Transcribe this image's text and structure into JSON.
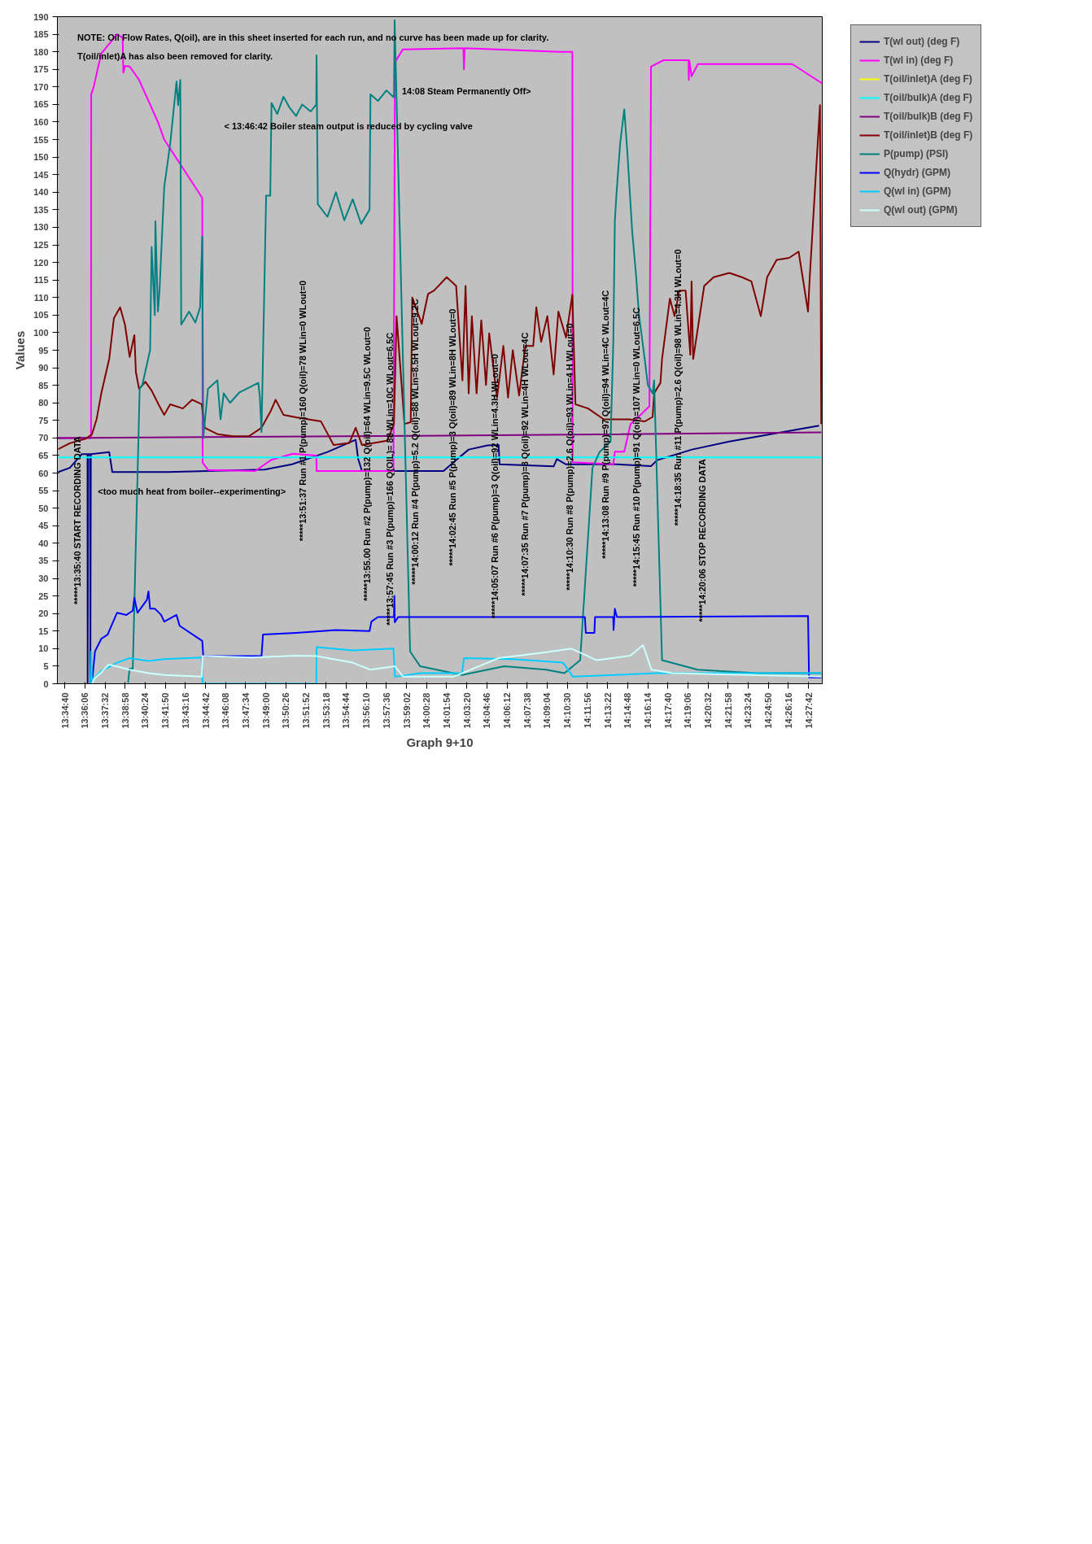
{
  "chart_data": {
    "type": "line",
    "xlabel": "Graph 9+10",
    "ylabel": "Values",
    "legend": "right",
    "xlim": [
      13.569,
      14.478
    ],
    "ylim": [
      0,
      190
    ],
    "yticks": [
      0,
      5,
      10,
      15,
      20,
      25,
      30,
      35,
      40,
      45,
      50,
      55,
      60,
      65,
      70,
      75,
      80,
      85,
      90,
      95,
      100,
      105,
      110,
      115,
      120,
      125,
      130,
      135,
      140,
      145,
      150,
      155,
      160,
      165,
      170,
      175,
      180,
      185,
      190
    ],
    "xticks": [
      {
        "value": 13.5778,
        "label": "13:34:40"
      },
      {
        "value": 13.6017,
        "label": "13:36:06"
      },
      {
        "value": 13.6256,
        "label": "13:37:32"
      },
      {
        "value": 13.6494,
        "label": "13:38:58"
      },
      {
        "value": 13.6733,
        "label": "13:40:24"
      },
      {
        "value": 13.6972,
        "label": "13:41:50"
      },
      {
        "value": 13.7211,
        "label": "13:43:16"
      },
      {
        "value": 13.745,
        "label": "13:44:42"
      },
      {
        "value": 13.7689,
        "label": "13:46:08"
      },
      {
        "value": 13.7928,
        "label": "13:47:34"
      },
      {
        "value": 13.8167,
        "label": "13:49:00"
      },
      {
        "value": 13.8406,
        "label": "13:50:26"
      },
      {
        "value": 13.8644,
        "label": "13:51:52"
      },
      {
        "value": 13.8883,
        "label": "13:53:18"
      },
      {
        "value": 13.9122,
        "label": "13:54:44"
      },
      {
        "value": 13.9361,
        "label": "13:56:10"
      },
      {
        "value": 13.96,
        "label": "13:57:36"
      },
      {
        "value": 13.9839,
        "label": "13:59:02"
      },
      {
        "value": 14.0078,
        "label": "14:00:28"
      },
      {
        "value": 14.0317,
        "label": "14:01:54"
      },
      {
        "value": 14.0556,
        "label": "14:03:20"
      },
      {
        "value": 14.0794,
        "label": "14:04:46"
      },
      {
        "value": 14.1033,
        "label": "14:06:12"
      },
      {
        "value": 14.1272,
        "label": "14:07:38"
      },
      {
        "value": 14.1511,
        "label": "14:09:04"
      },
      {
        "value": 14.175,
        "label": "14:10:30"
      },
      {
        "value": 14.1989,
        "label": "14:11:56"
      },
      {
        "value": 14.2228,
        "label": "14:13:22"
      },
      {
        "value": 14.2467,
        "label": "14:14:48"
      },
      {
        "value": 14.2706,
        "label": "14:16:14"
      },
      {
        "value": 14.2944,
        "label": "14:17:40"
      },
      {
        "value": 14.3183,
        "label": "14:19:06"
      },
      {
        "value": 14.3422,
        "label": "14:20:32"
      },
      {
        "value": 14.3661,
        "label": "14:21:58"
      },
      {
        "value": 14.39,
        "label": "14:23:24"
      },
      {
        "value": 14.4139,
        "label": "14:24:50"
      },
      {
        "value": 14.4378,
        "label": "14:26:16"
      },
      {
        "value": 14.4617,
        "label": "14:27:42"
      }
    ],
    "annotations": [
      "NOTE: Oil Flow Rates, Q(oil), are in this sheet inserted for each run, and no curve has been made up for clarity.",
      "T(oil/inlet)A has also been removed for clarity.",
      "< 13:46:42 Boiler steam output is reduced by cycling valve",
      "14:08 Steam Permanently Off>",
      "<too much heat from boiler--experimenting>",
      "*****13:35:40 START RECORDING DATA",
      "*****13:51:37 Run #1 P(pump)=160 Q(oil)=78 WLin=0 WLout=0",
      "*****13:55.00 Run #2 P(pump)=132 Q(oil)=64 WLin=9.5C WLout=0",
      "*****13:57:45 Run #3 P(pump)=166 Q(OIL)= 88 WLin=10C WLout=6.5C",
      "*****14:00:12 Run #4 P(pump)=5.2 Q(oil)=88 WLin=8.5H WLout=9.2C",
      "*****14:02:45 Run #5 P(pump)=3 Q(oil)=89 WLin=8H WLout=0",
      "*****14:05:07 Run #6 P(pump)=3 Q(oil)=92 WLin=4.3H WLout=0",
      "*****14:07:35 Run #7 P(pump)=3 Q(oil)=92 WLin=4H WLout=4C",
      "*****14:10:30 Run #8 P(pump)=2.6 Q(oil)=93 WLin=4 H WLout=0",
      "*****14:13:08 Run #9 P(pump)=97 Q(oil)=94 WLin=4C WLout=4C",
      "*****14:15:45 Run #10 P(pump)=91 Q(oil)=107 WLin=0 WLout=6.5C",
      "*****14:18:35 Run #11 P(pump)=2.6 Q(oil)=98 WLin=4.3H WLout=0",
      "*****14:20:06 STOP RECORDING DATA"
    ],
    "series": [
      {
        "name": "T(wl out) (deg F)",
        "color": "#000080",
        "x": [
          13.57,
          13.5838,
          13.598,
          13.6048,
          13.605,
          13.6056,
          13.608,
          13.6082,
          13.6088,
          13.6306,
          13.6343,
          13.7,
          13.8153,
          13.8479,
          13.89,
          13.9235,
          13.9265,
          13.931,
          14.0095,
          14.0279,
          14.0429,
          14.0578,
          14.0803,
          14.0934,
          14.0945,
          14.1588,
          14.1626,
          14.1735,
          14.2333,
          14.2745,
          14.282,
          14.3231,
          14.3676,
          14.4742
        ],
        "values": [
          60.3,
          61.5,
          65.4,
          65.4,
          0,
          65.4,
          65.4,
          0,
          65.4,
          66,
          60.3,
          60.3,
          61,
          62.5,
          66,
          69.5,
          64,
          60.6,
          60.6,
          60.6,
          63.7,
          66.7,
          67.9,
          68,
          62.5,
          61.9,
          64,
          62.5,
          62.5,
          62,
          63.7,
          66.7,
          69,
          73.5
        ]
      },
      {
        "name": "T(wl in) (deg F)",
        "color": "#ff00ff",
        "x": [
          13.57,
          13.609,
          13.6092,
          13.6118,
          13.6212,
          13.6399,
          13.6466,
          13.6474,
          13.6493,
          13.6549,
          13.6661,
          13.6773,
          13.6885,
          13.696,
          13.7412,
          13.7416,
          13.748,
          13.8041,
          13.8228,
          13.849,
          13.8767,
          13.8771,
          13.9684,
          13.9702,
          13.9796,
          14.0515,
          14.0522,
          14.053,
          14.1663,
          14.181,
          14.1814,
          14.2296,
          14.2315,
          14.2427,
          14.2502,
          14.2595,
          14.2726,
          14.2745,
          14.2894,
          14.319,
          14.3194,
          14.32,
          14.3227,
          14.3302,
          14.4424,
          14.4779
        ],
        "values": [
          70,
          70,
          167.9,
          169.7,
          179.5,
          185,
          184,
          174,
          176,
          175.8,
          172,
          166,
          160,
          155,
          138.4,
          63,
          60.9,
          60.6,
          63.7,
          65.5,
          65,
          60.6,
          60.6,
          177,
          180.7,
          181,
          175,
          181,
          180,
          180,
          63.1,
          62.5,
          66.1,
          66.1,
          74,
          76,
          79,
          175.8,
          177.6,
          177.6,
          172,
          177.6,
          173,
          176.5,
          176.5,
          171
        ]
      },
      {
        "name": "T(oil/inlet)A (deg F)",
        "color": "#ffff00"
      },
      {
        "name": "T(oil/bulk)A (deg F)",
        "color": "#00ffff",
        "x": [
          13.57,
          14.0,
          14.4768
        ],
        "values": [
          64.5,
          64.5,
          64.5
        ]
      },
      {
        "name": "T(oil/bulk)B (deg F)",
        "color": "#800080",
        "x": [
          13.57,
          14.0,
          14.4768
        ],
        "values": [
          70,
          70.6,
          71.6
        ]
      },
      {
        "name": "T(oil/inlet)B (deg F)",
        "color": "#800000",
        "x": [
          13.57,
          13.5838,
          13.6025,
          13.61,
          13.6156,
          13.6212,
          13.6306,
          13.6362,
          13.6436,
          13.6493,
          13.6549,
          13.6605,
          13.6623,
          13.6661,
          13.6736,
          13.681,
          13.6904,
          13.696,
          13.7031,
          13.7181,
          13.7293,
          13.7405,
          13.7442,
          13.7592,
          13.7779,
          13.7966,
          13.8116,
          13.8228,
          13.8284,
          13.8377,
          13.8527,
          13.8823,
          13.8973,
          13.916,
          13.9235,
          13.931,
          13.9609,
          13.969,
          13.9721,
          13.9815,
          13.9889,
          13.9908,
          14.002,
          14.0095,
          14.0167,
          14.0317,
          14.0429,
          14.0504,
          14.0541,
          14.0578,
          14.0616,
          14.0672,
          14.0728,
          14.0784,
          14.0822,
          14.0915,
          14.099,
          14.1046,
          14.1102,
          14.1177,
          14.1252,
          14.1345,
          14.1382,
          14.1439,
          14.1513,
          14.1588,
          14.1644,
          14.1735,
          14.181,
          14.1847,
          14.1997,
          14.2184,
          14.2483,
          14.267,
          14.2764,
          14.2782,
          14.2857,
          14.2876,
          14.2969,
          14.3025,
          14.3081,
          14.3156,
          14.3212,
          14.3227,
          14.3246,
          14.3377,
          14.3489,
          14.3676,
          14.3826,
          14.3938,
          14.405,
          14.4125,
          14.4237,
          14.4387,
          14.4499,
          14.4611,
          14.463,
          14.4753,
          14.4768
        ],
        "values": [
          66.8,
          68.5,
          69.8,
          71,
          75.3,
          82.7,
          92.5,
          104.1,
          107.2,
          102.3,
          93.1,
          99.3,
          88.8,
          84,
          86,
          83.5,
          79,
          76.6,
          79.6,
          78.4,
          80.9,
          79.6,
          72.9,
          71.1,
          70.5,
          70.5,
          72.9,
          77.8,
          80.9,
          76.6,
          75.9,
          74.7,
          68,
          68.6,
          72.9,
          68,
          69.2,
          74,
          104.7,
          74,
          74.5,
          110,
          102.5,
          111,
          112,
          115.8,
          113.3,
          86.4,
          113.3,
          82.7,
          104.7,
          82.7,
          103.5,
          85.1,
          99.8,
          81.5,
          96.2,
          81.5,
          95,
          82.1,
          96.2,
          96.2,
          107.2,
          97.4,
          104.7,
          88.1,
          106,
          98.6,
          110.8,
          79.6,
          78.4,
          75.3,
          75.3,
          74.7,
          76,
          82.7,
          85.7,
          92.5,
          109.7,
          104.7,
          112,
          112,
          93.7,
          114.6,
          92.5,
          113.3,
          115.8,
          117,
          115.8,
          114.6,
          104.7,
          115.8,
          120.7,
          121.3,
          123.1,
          106,
          115.2,
          164.8,
          74
        ]
      },
      {
        "name": "P(pump) (PSI)",
        "color": "#008080",
        "x": [
          13.653,
          13.6549,
          13.6586,
          13.6668,
          13.6698,
          13.6792,
          13.681,
          13.6848,
          13.6855,
          13.6885,
          13.6904,
          13.696,
          13.7031,
          13.7106,
          13.7125,
          13.7151,
          13.7162,
          13.7255,
          13.733,
          13.7386,
          13.7412,
          13.7424,
          13.748,
          13.7592,
          13.7629,
          13.7667,
          13.7742,
          13.7854,
          13.8078,
          13.8097,
          13.8116,
          13.8171,
          13.822,
          13.8235,
          13.8303,
          13.8377,
          13.8452,
          13.8527,
          13.86,
          13.87,
          13.8767,
          13.877,
          13.8785,
          13.89,
          13.9,
          13.91,
          13.92,
          13.93,
          13.94,
          13.9411,
          13.95,
          13.96,
          13.969,
          13.9698,
          13.9882,
          14.0,
          14.05,
          14.1,
          14.15,
          14.1716,
          14.1903,
          14.2049,
          14.2133,
          14.2264,
          14.2297,
          14.2315,
          14.2333,
          14.2378,
          14.2427,
          14.2464,
          14.252,
          14.2565,
          14.2603,
          14.267,
          14.2707,
          14.2764,
          14.2782,
          14.2876,
          14.33,
          14.4,
          14.4768
        ],
        "values": [
          0.3,
          4.3,
          4.3,
          84,
          85,
          95,
          124.4,
          105,
          131.7,
          106,
          112,
          141.5,
          153.8,
          171.5,
          164.8,
          172,
          102.3,
          106,
          102.9,
          107.2,
          127.4,
          70,
          84,
          86.4,
          75.3,
          82.7,
          80,
          83,
          85.7,
          81.5,
          71.7,
          139,
          139,
          165.4,
          162.3,
          167.2,
          164,
          161.7,
          165,
          163,
          165,
          179,
          136.6,
          133,
          140,
          132,
          138,
          131,
          135,
          167.9,
          166,
          169,
          167,
          189,
          9.2,
          5,
          2.5,
          5,
          4,
          3,
          6.7,
          61.5,
          66,
          69,
          97.4,
          131.7,
          139,
          153.8,
          163.6,
          151.3,
          129.3,
          117,
          104.8,
          92.5,
          85.1,
          82.7,
          86.4,
          6.7,
          4,
          3,
          3
        ]
      },
      {
        "name": "Q(hydr) (GPM)",
        "color": "#0000ff",
        "x": [
          13.61,
          13.6137,
          13.6212,
          13.6287,
          13.6399,
          13.6511,
          13.6586,
          13.6605,
          13.6642,
          13.6754,
          13.6773,
          13.6792,
          13.6848,
          13.6923,
          13.696,
          13.7106,
          13.7143,
          13.7412,
          13.7424,
          13.8116,
          13.8134,
          13.8527,
          13.9,
          13.94,
          13.9422,
          13.95,
          13.969,
          13.9695,
          13.97,
          13.974,
          14.1959,
          14.197,
          14.2072,
          14.208,
          14.2296,
          14.23,
          14.2315,
          14.234,
          14.4611,
          14.4623,
          14.4768
        ],
        "values": [
          0,
          9.2,
          12.8,
          14,
          20.2,
          19.6,
          20.8,
          24.5,
          20.2,
          23.9,
          26.3,
          21.4,
          21.4,
          19.6,
          17.7,
          19.6,
          16.5,
          12.2,
          7.9,
          7.9,
          14,
          14.5,
          15.3,
          15,
          17.7,
          19,
          19,
          25,
          17.5,
          19,
          19,
          14.5,
          14.5,
          19,
          19,
          15.3,
          21.4,
          19,
          19.3,
          1.8,
          1.8
        ]
      },
      {
        "name": "Q(wl in) (GPM)",
        "color": "#00ccff",
        "x": [
          13.6085,
          13.6092,
          13.61,
          13.6212,
          13.6399,
          13.6549,
          13.6773,
          13.696,
          13.7405,
          13.7416,
          13.852,
          13.8767,
          13.8771,
          13.92,
          13.9684,
          13.9702,
          14.0,
          14.05,
          14.0522,
          14.11,
          14.17,
          14.1816,
          14.23,
          14.28,
          14.33,
          14.4,
          14.4768
        ],
        "values": [
          0,
          9.2,
          1,
          3.6,
          6,
          7.3,
          6.5,
          7,
          7.5,
          0,
          0,
          0,
          10.4,
          9.5,
          10,
          2,
          3,
          3,
          7.3,
          7,
          6,
          2,
          2.5,
          3,
          3,
          3,
          3
        ]
      },
      {
        "name": "Q(wl out) (GPM)",
        "color": "#ccffff",
        "x": [
          13.61,
          13.613,
          13.6212,
          13.63,
          13.6549,
          13.6773,
          13.696,
          13.7405,
          13.7416,
          13.8,
          13.8527,
          13.8767,
          13.92,
          13.941,
          13.97,
          13.98,
          14.04,
          14.0934,
          14.15,
          14.18,
          14.21,
          14.25,
          14.265,
          14.275,
          14.3,
          14.4768
        ],
        "values": [
          0,
          1.5,
          3.2,
          5.5,
          4,
          3,
          2.5,
          2,
          7.9,
          7.5,
          8,
          7.9,
          6,
          4,
          5,
          2,
          2,
          7.3,
          9,
          10,
          6.7,
          8,
          11,
          4,
          3,
          2
        ]
      }
    ]
  }
}
